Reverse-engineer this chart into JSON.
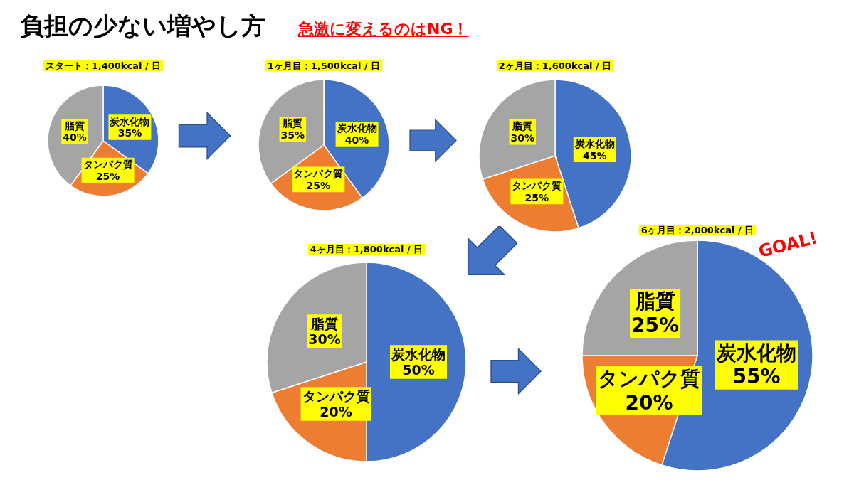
{
  "chart_data": [
    {
      "type": "other",
      "title": "負担の少ない増やし方",
      "subtitle": "急激に変えるのはNG！"
    },
    {
      "type": "pie",
      "title": "スタート：1,400kcal / 日",
      "categories": [
        "炭水化物",
        "タンパク質",
        "脂質"
      ],
      "values": [
        35,
        25,
        40
      ],
      "value_labels": [
        "35%",
        "25%",
        "40%"
      ],
      "colors": [
        "#4472c4",
        "#ed7d31",
        "#a5a5a5"
      ],
      "legend": false
    },
    {
      "type": "pie",
      "title": "1ヶ月目：1,500kcal / 日",
      "categories": [
        "炭水化物",
        "タンパク質",
        "脂質"
      ],
      "values": [
        40,
        25,
        35
      ],
      "value_labels": [
        "40%",
        "25%",
        "35%"
      ],
      "colors": [
        "#4472c4",
        "#ed7d31",
        "#a5a5a5"
      ],
      "legend": false
    },
    {
      "type": "pie",
      "title": "2ヶ月目：1,600kcal / 日",
      "categories": [
        "炭水化物",
        "タンパク質",
        "脂質"
      ],
      "values": [
        45,
        25,
        30
      ],
      "value_labels": [
        "45%",
        "25%",
        "30%"
      ],
      "colors": [
        "#4472c4",
        "#ed7d31",
        "#a5a5a5"
      ],
      "legend": false
    },
    {
      "type": "pie",
      "title": "4ヶ月目：1,800kcal / 日",
      "categories": [
        "炭水化物",
        "タンパク質",
        "脂質"
      ],
      "values": [
        50,
        20,
        30
      ],
      "value_labels": [
        "50%",
        "20%",
        "30%"
      ],
      "colors": [
        "#4472c4",
        "#ed7d31",
        "#a5a5a5"
      ],
      "legend": false
    },
    {
      "type": "pie",
      "title": "6ヶ月目：2,000kcal / 日",
      "categories": [
        "炭水化物",
        "タンパク質",
        "脂質"
      ],
      "values": [
        55,
        20,
        25
      ],
      "value_labels": [
        "55%",
        "20%",
        "25%"
      ],
      "colors": [
        "#4472c4",
        "#ed7d31",
        "#a5a5a5"
      ],
      "legend": false,
      "annotations": [
        "GOAL!"
      ]
    }
  ]
}
